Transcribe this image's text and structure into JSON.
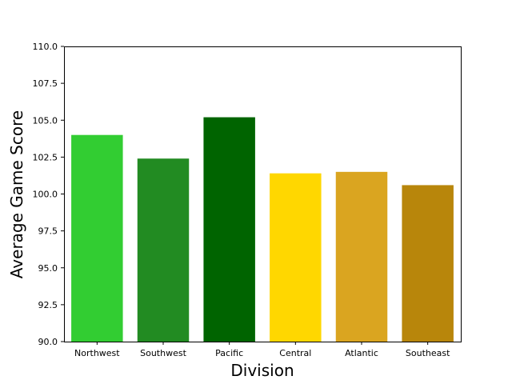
{
  "chart_data": {
    "type": "bar",
    "title": "",
    "xlabel": "Division",
    "ylabel": "Average Game Score",
    "categories": [
      "Northwest",
      "Southwest",
      "Pacific",
      "Central",
      "Atlantic",
      "Southeast"
    ],
    "values": [
      104.0,
      102.4,
      105.2,
      101.4,
      101.5,
      100.6
    ],
    "colors": [
      "#32cd32",
      "#228b22",
      "#006400",
      "#ffd700",
      "#daa520",
      "#b8860b"
    ],
    "ylim": [
      90.0,
      110.0
    ],
    "yticks": [
      "90.0",
      "92.5",
      "95.0",
      "97.5",
      "100.0",
      "102.5",
      "105.0",
      "107.5",
      "110.0"
    ],
    "grid": false,
    "legend": "none"
  }
}
